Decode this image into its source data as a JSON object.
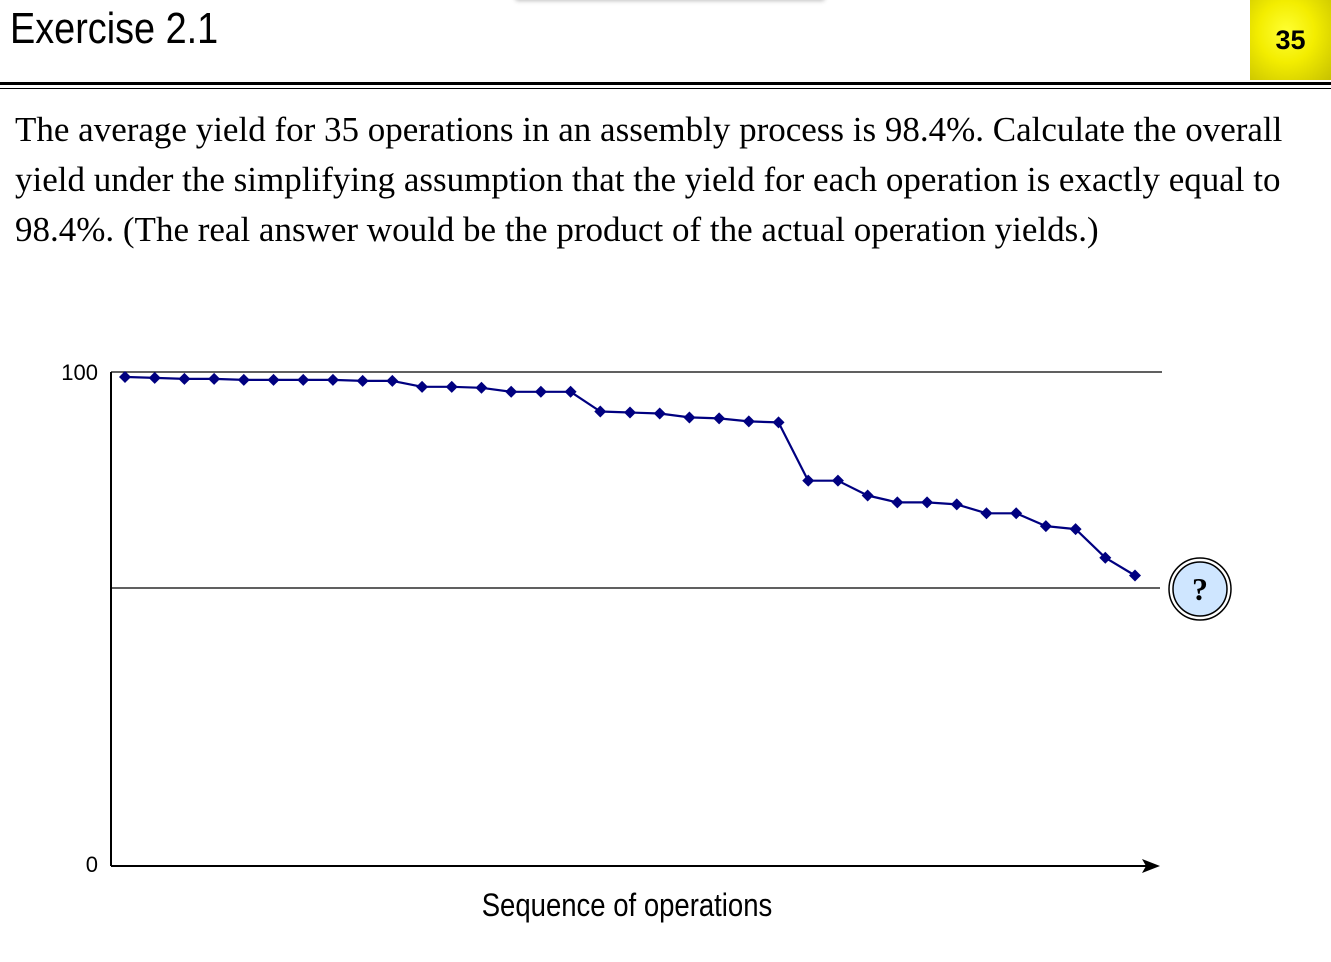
{
  "header": {
    "title": "Exercise 2.1",
    "page_number": "35"
  },
  "body": {
    "text": "The average yield for 35 operations in an assembly process is 98.4%. Calculate the overall yield under the simplifying assumption that the yield for each operation is exactly equal to 98.4%. (The real answer would be the product of the actual operation yields.)"
  },
  "chart_data": {
    "type": "line",
    "title": "",
    "xlabel": "Sequence of operations",
    "ylabel": "",
    "y_ticks": [
      "100",
      "0"
    ],
    "ylim": [
      0,
      100
    ],
    "xlim": [
      0,
      36
    ],
    "grid": false,
    "reference_lines": [
      100,
      56
    ],
    "callout": "?",
    "series": [
      {
        "x": [
          1,
          2,
          3,
          4,
          5,
          6,
          7,
          8,
          9,
          10,
          11,
          12,
          13,
          14,
          15,
          16,
          17,
          18,
          19,
          20,
          21,
          22,
          23,
          24,
          25,
          26,
          27,
          28,
          29,
          30,
          31,
          32,
          33,
          34,
          35
        ],
        "values": [
          99,
          98.8,
          98.6,
          98.6,
          98.4,
          98.4,
          98.4,
          98.4,
          98.2,
          98.2,
          97,
          97,
          96.8,
          96,
          96,
          96,
          92,
          91.8,
          91.6,
          90.8,
          90.6,
          90,
          89.8,
          78,
          78,
          75,
          73.6,
          73.6,
          73.2,
          71.4,
          71.4,
          68.8,
          68.2,
          62.4,
          58.8
        ],
        "color": "#000080"
      }
    ],
    "colors": {
      "line": "#000080",
      "callout_fill": "#cfe6ff"
    }
  }
}
